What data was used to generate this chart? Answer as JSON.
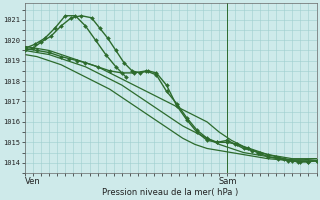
{
  "bg_color": "#ceeaea",
  "grid_color": "#9ecece",
  "line_color": "#2d6b2d",
  "ylabel_vals": [
    1014,
    1015,
    1016,
    1017,
    1018,
    1019,
    1020,
    1021
  ],
  "ylim": [
    1013.5,
    1021.8
  ],
  "xlim": [
    0.0,
    1.44
  ],
  "xlabel": "Pression niveau de la mer( hPa )",
  "xtick_labels": [
    "Ven",
    "Sam"
  ],
  "xtick_pos": [
    0.04,
    1.0
  ],
  "vline_pos": 1.0,
  "series": [
    {
      "x": [
        0.0,
        0.04,
        0.08,
        0.13,
        0.18,
        0.23,
        0.28,
        0.33,
        0.37,
        0.41,
        0.45,
        0.49,
        0.53,
        0.57,
        0.61,
        0.65,
        0.7,
        0.75,
        0.8,
        0.85,
        0.9,
        0.95,
        1.0,
        1.04,
        1.08,
        1.12,
        1.16,
        1.2,
        1.24,
        1.28,
        1.32,
        1.36,
        1.4,
        1.44
      ],
      "y": [
        1019.5,
        1019.6,
        1019.9,
        1020.2,
        1020.7,
        1021.1,
        1021.2,
        1021.1,
        1020.6,
        1020.1,
        1019.5,
        1018.9,
        1018.5,
        1018.4,
        1018.5,
        1018.4,
        1017.8,
        1016.8,
        1016.1,
        1015.5,
        1015.1,
        1015.0,
        1015.1,
        1014.9,
        1014.7,
        1014.6,
        1014.5,
        1014.4,
        1014.3,
        1014.2,
        1014.1,
        1014.05,
        1014.05,
        1014.1
      ],
      "marker": "D",
      "markersize": 2.0,
      "linewidth": 1.0,
      "color": "#2d6b2d"
    },
    {
      "x": [
        0.0,
        0.06,
        0.12,
        0.18,
        0.24,
        0.3,
        0.36,
        0.42,
        0.48,
        0.54,
        0.6,
        0.66,
        0.72,
        0.78,
        0.84,
        0.9,
        0.96,
        1.02,
        1.08,
        1.14,
        1.2,
        1.26,
        1.32,
        1.38,
        1.44
      ],
      "y": [
        1019.5,
        1019.4,
        1019.3,
        1019.1,
        1018.9,
        1018.7,
        1018.4,
        1018.1,
        1017.8,
        1017.4,
        1017.0,
        1016.6,
        1016.2,
        1015.8,
        1015.5,
        1015.2,
        1014.9,
        1014.7,
        1014.5,
        1014.4,
        1014.3,
        1014.2,
        1014.15,
        1014.15,
        1014.2
      ],
      "marker": null,
      "markersize": 0,
      "linewidth": 0.9,
      "color": "#2d6b2d"
    },
    {
      "x": [
        0.0,
        0.06,
        0.12,
        0.18,
        0.24,
        0.3,
        0.36,
        0.42,
        0.48,
        0.54,
        0.6,
        0.66,
        0.72,
        0.78,
        0.84,
        0.9,
        0.96,
        1.02,
        1.08,
        1.14,
        1.2,
        1.26,
        1.32,
        1.38,
        1.44
      ],
      "y": [
        1019.3,
        1019.2,
        1019.0,
        1018.8,
        1018.5,
        1018.2,
        1017.9,
        1017.6,
        1017.2,
        1016.8,
        1016.4,
        1016.0,
        1015.6,
        1015.2,
        1014.9,
        1014.7,
        1014.6,
        1014.5,
        1014.4,
        1014.3,
        1014.2,
        1014.15,
        1014.1,
        1014.1,
        1014.1
      ],
      "marker": null,
      "markersize": 0,
      "linewidth": 0.9,
      "color": "#2d6b2d"
    },
    {
      "x": [
        0.0,
        0.06,
        0.12,
        0.18,
        0.24,
        0.3,
        0.36,
        0.42,
        0.48,
        0.54,
        0.6,
        0.66,
        0.72,
        0.78,
        0.84,
        0.9,
        0.96,
        1.02,
        1.08,
        1.14,
        1.2,
        1.26,
        1.32,
        1.38,
        1.44
      ],
      "y": [
        1019.7,
        1019.6,
        1019.5,
        1019.3,
        1019.1,
        1018.9,
        1018.7,
        1018.4,
        1018.1,
        1017.8,
        1017.5,
        1017.2,
        1016.9,
        1016.6,
        1016.3,
        1016.0,
        1015.5,
        1015.1,
        1014.8,
        1014.6,
        1014.4,
        1014.3,
        1014.2,
        1014.2,
        1014.2
      ],
      "marker": null,
      "markersize": 0,
      "linewidth": 0.9,
      "color": "#2d6b2d"
    },
    {
      "x": [
        0.0,
        0.06,
        0.12,
        0.18,
        0.22,
        0.26,
        0.3,
        0.36,
        0.42,
        0.48,
        0.54,
        0.6,
        0.65,
        0.7,
        0.75,
        0.8,
        0.85,
        0.9,
        0.95,
        1.0,
        1.05,
        1.1,
        1.15,
        1.2,
        1.25,
        1.3,
        1.35,
        1.4,
        1.44
      ],
      "y": [
        1019.6,
        1019.5,
        1019.4,
        1019.2,
        1019.1,
        1019.0,
        1018.9,
        1018.7,
        1018.5,
        1018.4,
        1018.4,
        1018.5,
        1018.3,
        1017.5,
        1016.9,
        1016.2,
        1015.6,
        1015.2,
        1015.0,
        1015.0,
        1014.9,
        1014.7,
        1014.5,
        1014.3,
        1014.2,
        1014.1,
        1014.05,
        1014.05,
        1014.1
      ],
      "marker": "D",
      "markersize": 2.0,
      "linewidth": 1.0,
      "color": "#2d6b2d"
    },
    {
      "x": [
        0.0,
        0.05,
        0.1,
        0.15,
        0.2,
        0.25,
        0.3,
        0.35,
        0.4,
        0.45,
        0.5
      ],
      "y": [
        1019.6,
        1019.8,
        1020.1,
        1020.6,
        1021.2,
        1021.2,
        1020.7,
        1020.0,
        1019.3,
        1018.7,
        1018.2
      ],
      "marker": "D",
      "markersize": 2.0,
      "linewidth": 1.0,
      "color": "#2d6b2d"
    }
  ],
  "figsize": [
    3.2,
    2.0
  ],
  "dpi": 100
}
